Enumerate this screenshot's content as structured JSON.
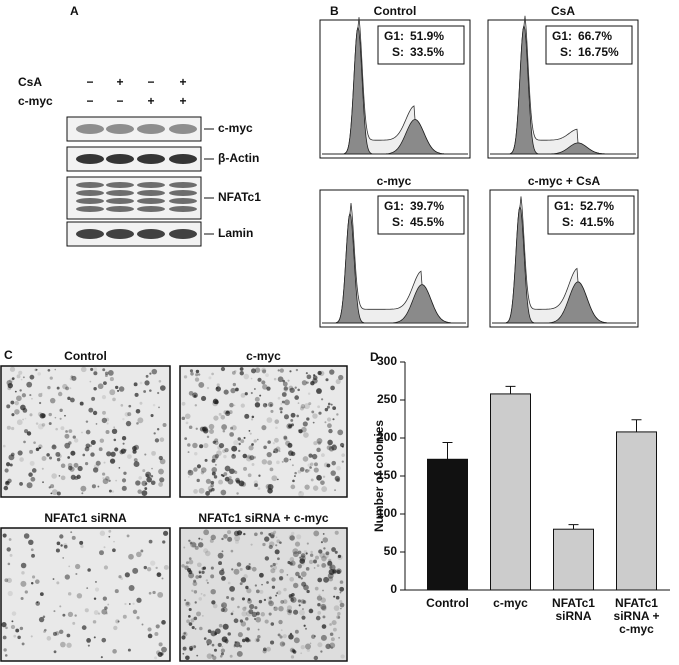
{
  "panels": {
    "A": {
      "letter": "A",
      "rows": [
        {
          "label": "CsA",
          "signs": [
            "−",
            "+",
            "−",
            "+"
          ]
        },
        {
          "label": "c-myc",
          "signs": [
            "−",
            "−",
            "+",
            "+"
          ]
        }
      ],
      "blots": [
        "c-myc",
        "β-Actin",
        "NFATc1",
        "Lamin"
      ]
    },
    "B": {
      "letter": "B",
      "g1_label": "G1:",
      "s_label": "S:",
      "histograms": [
        {
          "title": "Control",
          "g1": "51.9%",
          "s": "33.5%"
        },
        {
          "title": "CsA",
          "g1": "66.7%",
          "s": "16.75%"
        },
        {
          "title": "c-myc",
          "g1": "39.7%",
          "s": "45.5%"
        },
        {
          "title": "c-myc + CsA",
          "g1": "52.7%",
          "s": "41.5%"
        }
      ]
    },
    "C": {
      "letter": "C",
      "titles": [
        "Control",
        "c-myc",
        "NFATc1 siRNA",
        "NFATc1 siRNA + c-myc"
      ]
    },
    "D": {
      "letter": "D"
    }
  },
  "chart_data": {
    "type": "bar",
    "ylabel": "Number of colonies",
    "categories": [
      "Control",
      "c-myc",
      "NFATc1 siRNA",
      "NFATc1 siRNA + c-myc"
    ],
    "values": [
      172,
      258,
      80,
      208
    ],
    "errors": [
      22,
      10,
      6,
      16
    ],
    "colors": [
      "#111111",
      "#cccccc",
      "#cccccc",
      "#cccccc"
    ],
    "ylim": [
      0,
      300
    ],
    "yticks": [
      0,
      50,
      100,
      150,
      200,
      250,
      300
    ],
    "grid": false
  }
}
